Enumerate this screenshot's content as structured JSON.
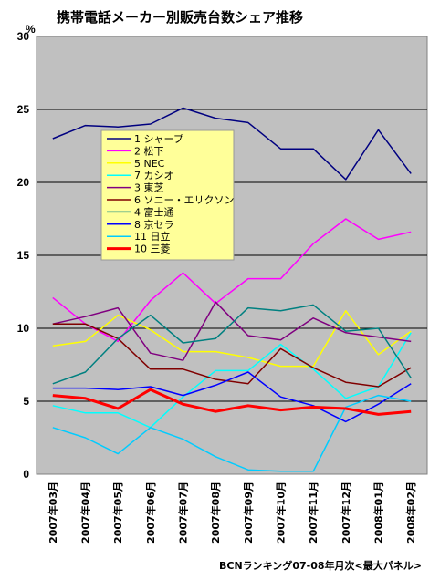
{
  "chart_data": {
    "type": "line",
    "title": "携帯電話メーカー別販売台数シェア推移",
    "ylabel": "%",
    "source": "BCNランキング07-08年月次<最大パネル>",
    "ylim": [
      0,
      30
    ],
    "yticks": [
      0,
      5,
      10,
      15,
      20,
      25,
      30
    ],
    "grid": true,
    "legend_position": "left-middle",
    "plot_background": "#c0c0c0",
    "legend_background": "#ffff99",
    "categories": [
      "2007年03月",
      "2007年04月",
      "2007年05月",
      "2007年06月",
      "2007年07月",
      "2007年08月",
      "2007年09月",
      "2007年10月",
      "2007年11月",
      "2007年12月",
      "2008年01月",
      "2008年02月"
    ],
    "series": [
      {
        "name": "1 シャープ",
        "color": "#000080",
        "width": 1.5,
        "values": [
          23.0,
          23.9,
          23.8,
          24.0,
          25.1,
          24.4,
          24.1,
          22.3,
          22.3,
          20.2,
          23.6,
          20.6
        ]
      },
      {
        "name": "2 松下",
        "color": "#ff00ff",
        "width": 1.5,
        "values": [
          12.1,
          10.3,
          9.1,
          11.9,
          13.8,
          11.7,
          13.4,
          13.4,
          15.8,
          17.5,
          16.1,
          16.6
        ]
      },
      {
        "name": "5 NEC",
        "color": "#ffff00",
        "width": 1.5,
        "values": [
          8.8,
          9.1,
          10.9,
          9.9,
          8.4,
          8.4,
          8.0,
          7.4,
          7.4,
          11.2,
          8.2,
          9.8
        ]
      },
      {
        "name": "7 カシオ",
        "color": "#00ffff",
        "width": 1.5,
        "values": [
          4.7,
          4.2,
          4.2,
          3.2,
          5.3,
          7.1,
          7.1,
          8.9,
          7.2,
          5.2,
          6.0,
          9.7
        ]
      },
      {
        "name": "3 東芝",
        "color": "#800080",
        "width": 1.5,
        "values": [
          10.3,
          10.8,
          11.4,
          8.3,
          7.8,
          11.8,
          9.5,
          9.2,
          10.7,
          9.7,
          9.4,
          9.1
        ]
      },
      {
        "name": "6 ソニー・エリクソン",
        "color": "#800000",
        "width": 1.5,
        "values": [
          10.3,
          10.3,
          9.3,
          7.2,
          7.2,
          6.5,
          6.2,
          8.6,
          7.3,
          6.3,
          6.0,
          7.3
        ]
      },
      {
        "name": "4 富士通",
        "color": "#008080",
        "width": 1.5,
        "values": [
          6.2,
          7.0,
          9.3,
          10.9,
          9.0,
          9.3,
          11.4,
          11.2,
          11.6,
          9.8,
          10.0,
          6.6
        ]
      },
      {
        "name": "8 京セラ",
        "color": "#0000ff",
        "width": 1.5,
        "values": [
          5.9,
          5.9,
          5.8,
          6.0,
          5.4,
          6.1,
          7.0,
          5.3,
          4.7,
          3.6,
          4.8,
          6.2
        ]
      },
      {
        "name": "11 日立",
        "color": "#00ccff",
        "width": 1.5,
        "values": [
          3.2,
          2.5,
          1.4,
          3.2,
          2.4,
          1.2,
          0.3,
          0.2,
          0.2,
          4.6,
          5.4,
          5.0
        ]
      },
      {
        "name": "10 三菱",
        "color": "#ff0000",
        "width": 3,
        "values": [
          5.4,
          5.2,
          4.5,
          5.8,
          4.8,
          4.3,
          4.7,
          4.4,
          4.6,
          4.5,
          4.1,
          4.3
        ]
      }
    ]
  }
}
